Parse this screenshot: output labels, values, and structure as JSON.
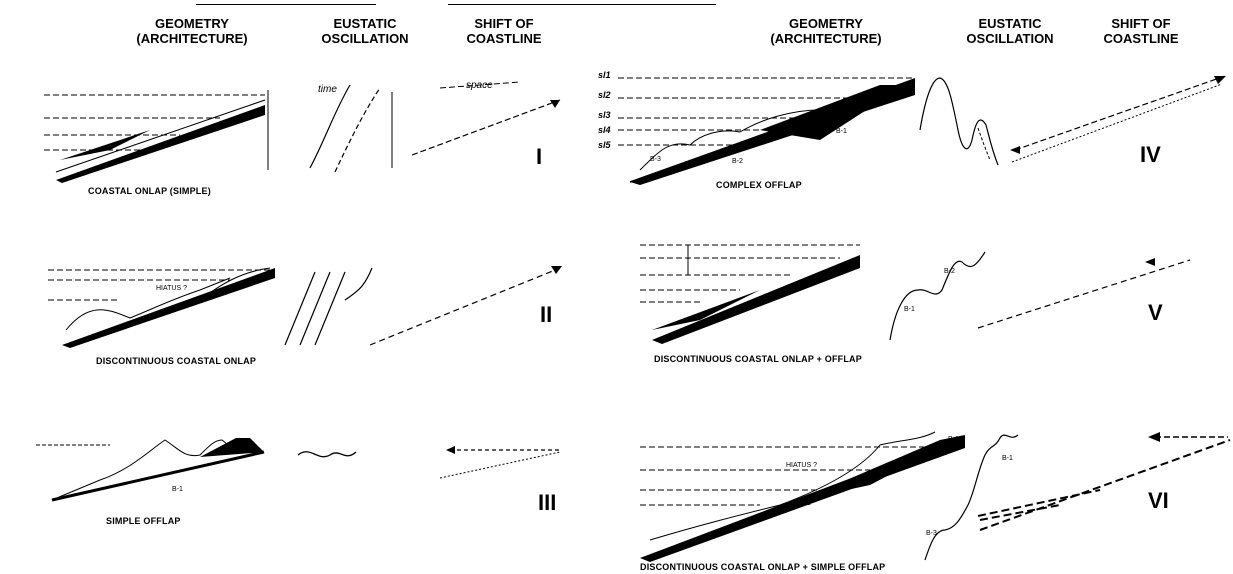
{
  "headers": {
    "geometry": "GEOMETRY\n(ARCHITECTURE)",
    "eustatic": "EUSTATIC\nOSCILLATION",
    "shift": "SHIFT OF\nCOASTLINE"
  },
  "panels": {
    "I": {
      "numeral": "I",
      "caption": "COASTAL ONLAP (SIMPLE)"
    },
    "II": {
      "numeral": "II",
      "caption": "DISCONTINUOUS COASTAL ONLAP"
    },
    "III": {
      "numeral": "III",
      "caption": "SIMPLE OFFLAP"
    },
    "IV": {
      "numeral": "IV",
      "caption": "COMPLEX OFFLAP"
    },
    "V": {
      "numeral": "V",
      "caption": "DISCONTINUOUS COASTAL ONLAP + OFFLAP"
    },
    "VI": {
      "numeral": "VI",
      "caption": "DISCONTINUOUS COASTAL ONLAP + SIMPLE OFFLAP"
    }
  },
  "labels": {
    "time": "time",
    "space": "space",
    "sl": [
      "sl1",
      "sl2",
      "sl3",
      "sl4",
      "sl5"
    ],
    "b1": "B-1",
    "b2": "B-2",
    "b3": "B-3",
    "hiatus": "HIATUS ?"
  }
}
